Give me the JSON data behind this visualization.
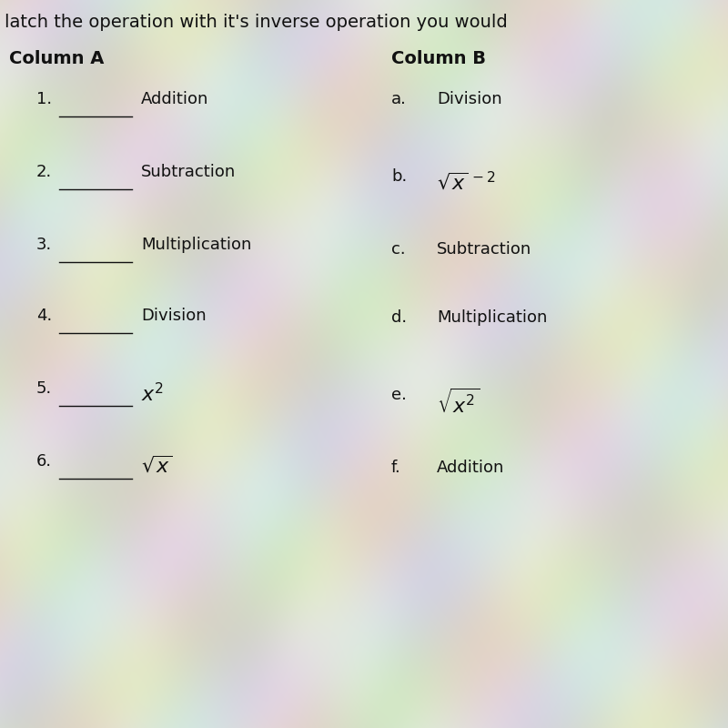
{
  "title": "latch the operation with it's inverse operation you would",
  "col_a_header": "Column A",
  "col_b_header": "Column B",
  "col_a_items": [
    {
      "num": "1.",
      "text": "Addition",
      "math": false
    },
    {
      "num": "2.",
      "text": "Subtraction",
      "math": false
    },
    {
      "num": "3.",
      "text": "Multiplication",
      "math": false
    },
    {
      "num": "4.",
      "text": "Division",
      "math": false
    },
    {
      "num": "5.",
      "text": "$x^2$",
      "math": true
    },
    {
      "num": "6.",
      "text": "$\\sqrt{x}$",
      "math": true
    }
  ],
  "col_b_items": [
    {
      "letter": "a.",
      "text": "Division",
      "math": false
    },
    {
      "letter": "b.",
      "text": "$\\sqrt{x}^{\\,-2}$",
      "math": true
    },
    {
      "letter": "c.",
      "text": "Subtraction",
      "math": false
    },
    {
      "letter": "d.",
      "text": "Multiplication",
      "math": false
    },
    {
      "letter": "e.",
      "text": "$\\sqrt{x^2}$",
      "math": true
    },
    {
      "letter": "f.",
      "text": "Addition",
      "math": false
    }
  ],
  "text_color": "#111111",
  "header_fontsize": 14,
  "item_fontsize": 13,
  "title_fontsize": 14,
  "bg_base": [
    0.88,
    0.88,
    0.84
  ],
  "bg_stripe_color1": [
    0.85,
    0.9,
    0.85
  ],
  "bg_stripe_color2": [
    0.9,
    0.88,
    0.92
  ]
}
